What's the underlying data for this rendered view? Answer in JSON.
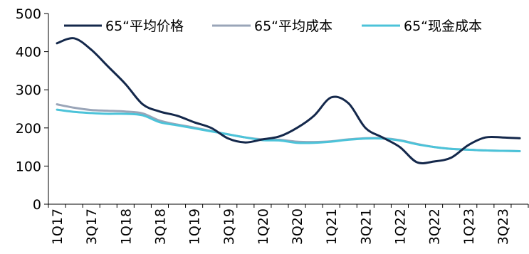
{
  "chart_data": {
    "type": "line",
    "title": "",
    "xlabel": "",
    "ylabel": "",
    "ylim": [
      0,
      500
    ],
    "yticks": [
      0,
      100,
      200,
      300,
      400,
      500
    ],
    "grid": false,
    "legend_position": "top",
    "categories": [
      "1Q17",
      "2Q17",
      "3Q17",
      "4Q17",
      "1Q18",
      "2Q18",
      "3Q18",
      "4Q18",
      "1Q19",
      "2Q19",
      "3Q19",
      "4Q19",
      "1Q20",
      "2Q20",
      "3Q20",
      "4Q20",
      "1Q21",
      "2Q21",
      "3Q21",
      "4Q21",
      "1Q22",
      "2Q22",
      "3Q22",
      "4Q22",
      "1Q23",
      "2Q23",
      "3Q23",
      "4Q23"
    ],
    "tick_labels": [
      "1Q17",
      "3Q17",
      "1Q18",
      "3Q18",
      "1Q19",
      "3Q19",
      "1Q20",
      "3Q20",
      "1Q21",
      "3Q21",
      "1Q22",
      "3Q22",
      "1Q23",
      "3Q23"
    ],
    "series": [
      {
        "name": "65“平均价格",
        "color": "#14284b",
        "values": [
          422,
          435,
          405,
          360,
          315,
          262,
          243,
          232,
          215,
          200,
          172,
          162,
          170,
          178,
          200,
          232,
          280,
          265,
          200,
          175,
          150,
          110,
          112,
          122,
          155,
          175,
          175,
          173
        ]
      },
      {
        "name": "65“平均成本",
        "color": "#9aa5b8",
        "values": [
          262,
          253,
          247,
          245,
          243,
          238,
          219,
          209,
          201,
          192,
          183,
          175,
          170,
          169,
          164,
          163,
          165,
          170,
          173,
          173,
          168,
          158,
          150,
          145,
          143,
          141,
          140,
          139
        ]
      },
      {
        "name": "65“现金成本",
        "color": "#4cc3d9",
        "values": [
          248,
          242,
          239,
          237,
          237,
          233,
          215,
          207,
          199,
          191,
          183,
          175,
          168,
          167,
          161,
          161,
          164,
          169,
          172,
          172,
          167,
          157,
          150,
          145,
          143,
          141,
          140,
          139
        ]
      }
    ]
  }
}
